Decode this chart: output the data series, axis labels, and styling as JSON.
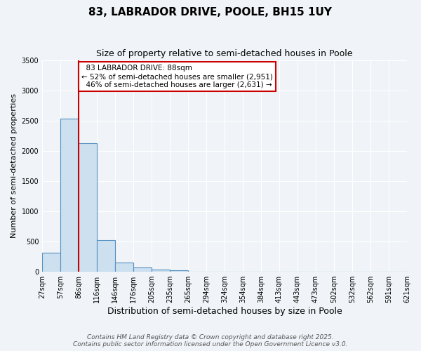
{
  "title": "83, LABRADOR DRIVE, POOLE, BH15 1UY",
  "subtitle": "Size of property relative to semi-detached houses in Poole",
  "xlabel": "Distribution of semi-detached houses by size in Poole",
  "ylabel": "Number of semi-detached properties",
  "bin_labels": [
    "27sqm",
    "57sqm",
    "86sqm",
    "116sqm",
    "146sqm",
    "176sqm",
    "205sqm",
    "235sqm",
    "265sqm",
    "294sqm",
    "324sqm",
    "354sqm",
    "384sqm",
    "413sqm",
    "443sqm",
    "473sqm",
    "502sqm",
    "532sqm",
    "562sqm",
    "591sqm",
    "621sqm"
  ],
  "bar_heights": [
    320,
    2530,
    2120,
    520,
    155,
    75,
    40,
    30,
    0,
    0,
    0,
    0,
    0,
    0,
    0,
    0,
    0,
    0,
    0,
    0
  ],
  "bar_color": "#cce0f0",
  "bar_edge_color": "#5590c0",
  "property_line_x": 2,
  "property_label": "83 LABRADOR DRIVE: 88sqm",
  "smaller_pct": "52% of semi-detached houses are smaller (2,951)",
  "larger_pct": "46% of semi-detached houses are larger (2,631)",
  "annotation_box_color": "#ffffff",
  "annotation_box_edge": "#cc0000",
  "property_line_color": "#cc0000",
  "ylim": [
    0,
    3500
  ],
  "yticks": [
    0,
    500,
    1000,
    1500,
    2000,
    2500,
    3000,
    3500
  ],
  "background_color": "#f0f4f8",
  "grid_color": "#ffffff",
  "footer_line1": "Contains HM Land Registry data © Crown copyright and database right 2025.",
  "footer_line2": "Contains public sector information licensed under the Open Government Licence v3.0."
}
